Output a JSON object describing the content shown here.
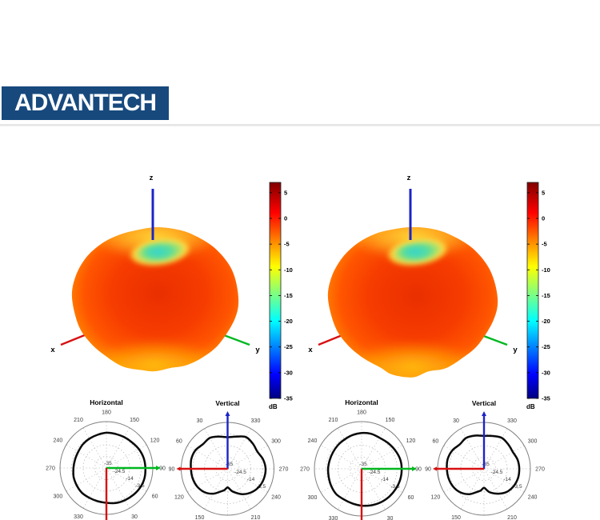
{
  "logo": {
    "text": "ADVANTECH",
    "bg_color": "#17497d"
  },
  "colors": {
    "x_axis": "#d81010",
    "y_axis": "#00b820",
    "z_axis": "#1c24c8",
    "pattern_curve": "#0a0a0a",
    "grid": "#b5b5b5"
  },
  "chart_data": [
    {
      "type": "3d-radiation-pattern",
      "position": "left",
      "axis_labels": {
        "x": "x",
        "y": "y",
        "z": "z"
      },
      "colorbar": {
        "unit": "dB",
        "tick_labels": [
          "5",
          "0",
          "-5",
          "-10",
          "-15",
          "-20",
          "-25",
          "-30",
          "-35"
        ],
        "max": 7,
        "min": -35,
        "colormap": "jet"
      },
      "silhouette": [
        [
          0,
          1.0
        ],
        [
          20,
          0.98
        ],
        [
          40,
          0.93
        ],
        [
          60,
          0.88
        ],
        [
          75,
          0.855
        ],
        [
          90,
          0.845
        ],
        [
          105,
          0.84
        ],
        [
          120,
          0.87
        ],
        [
          135,
          0.915
        ],
        [
          150,
          0.96
        ],
        [
          165,
          0.99
        ],
        [
          180,
          1.0
        ],
        [
          200,
          0.98
        ],
        [
          215,
          0.95
        ],
        [
          230,
          0.92
        ],
        [
          245,
          0.915
        ],
        [
          260,
          0.885
        ],
        [
          270,
          0.885
        ],
        [
          282,
          0.865
        ],
        [
          295,
          0.895
        ],
        [
          310,
          0.92
        ],
        [
          325,
          0.95
        ],
        [
          345,
          0.99
        ]
      ]
    },
    {
      "type": "3d-radiation-pattern",
      "position": "right",
      "axis_labels": {
        "x": "x",
        "y": "y",
        "z": "z"
      },
      "colorbar": {
        "unit": "dB",
        "tick_labels": [
          "5",
          "0",
          "-5",
          "-10",
          "-15",
          "-20",
          "-25",
          "-30",
          "-35"
        ],
        "max": 7,
        "min": -35,
        "colormap": "jet"
      },
      "silhouette": [
        [
          0,
          1.0
        ],
        [
          20,
          0.97
        ],
        [
          40,
          0.92
        ],
        [
          60,
          0.87
        ],
        [
          75,
          0.85
        ],
        [
          90,
          0.84
        ],
        [
          105,
          0.845
        ],
        [
          120,
          0.88
        ],
        [
          135,
          0.92
        ],
        [
          150,
          0.96
        ],
        [
          165,
          0.99
        ],
        [
          180,
          1.0
        ],
        [
          200,
          0.975
        ],
        [
          215,
          0.945
        ],
        [
          230,
          0.915
        ],
        [
          245,
          0.9
        ],
        [
          255,
          0.93
        ],
        [
          270,
          0.93
        ],
        [
          282,
          0.88
        ],
        [
          295,
          0.91
        ],
        [
          310,
          0.915
        ],
        [
          325,
          0.945
        ],
        [
          345,
          0.985
        ]
      ]
    },
    {
      "type": "polar",
      "title": "Horizontal",
      "orientation": "horizontal",
      "angle_tick_labels": [
        180,
        210,
        240,
        270,
        300,
        330,
        30,
        60,
        90,
        120,
        150
      ],
      "radial_tick_labels": [
        "-35",
        "-24.5",
        "-14",
        "-3.5"
      ],
      "radial_range": [
        -35,
        7
      ],
      "series": [
        {
          "name": "gain_db",
          "points": [
            [
              0,
              0.3
            ],
            [
              15,
              -0.1
            ],
            [
              30,
              -1.0
            ],
            [
              45,
              -2.2
            ],
            [
              60,
              -2.7
            ],
            [
              75,
              -3.1
            ],
            [
              90,
              -3.1
            ],
            [
              105,
              -3.9
            ],
            [
              120,
              -4.3
            ],
            [
              135,
              -4.8
            ],
            [
              150,
              -5.6
            ],
            [
              165,
              -5.6
            ],
            [
              180,
              -5.2
            ],
            [
              195,
              -4.3
            ],
            [
              210,
              -3.9
            ],
            [
              225,
              -3.5
            ],
            [
              240,
              -3.9
            ],
            [
              255,
              -3.9
            ],
            [
              270,
              -3.5
            ],
            [
              285,
              -2.2
            ],
            [
              300,
              -1.4
            ],
            [
              315,
              -0.6
            ],
            [
              330,
              0.3
            ],
            [
              345,
              0.7
            ]
          ]
        }
      ]
    },
    {
      "type": "polar",
      "title": "Vertical",
      "orientation": "vertical",
      "angle_tick_labels": [
        30,
        60,
        90,
        120,
        150,
        210,
        240,
        270,
        300,
        330
      ],
      "radial_tick_labels": [
        "-35",
        "-24.5",
        "-14",
        "-3.5"
      ],
      "radial_range": [
        -35,
        7
      ],
      "series": [
        {
          "name": "gain_db",
          "points": [
            [
              0,
              -0.6
            ],
            [
              15,
              -1.8
            ],
            [
              30,
              -3.9
            ],
            [
              45,
              -2.7
            ],
            [
              60,
              -1.8
            ],
            [
              75,
              -4.8
            ],
            [
              90,
              -6.4
            ],
            [
              105,
              -4.8
            ],
            [
              120,
              -2.7
            ],
            [
              135,
              -3.5
            ],
            [
              150,
              -1.4
            ],
            [
              165,
              -1.0
            ],
            [
              180,
              -1.8
            ],
            [
              195,
              -2.2
            ],
            [
              210,
              -3.1
            ],
            [
              225,
              -5.2
            ],
            [
              240,
              -9.0
            ],
            [
              255,
              -14.0
            ],
            [
              262,
              -15.7
            ],
            [
              270,
              -18.2
            ],
            [
              278,
              -15.7
            ],
            [
              285,
              -13.2
            ],
            [
              300,
              -8.5
            ],
            [
              315,
              -4.8
            ],
            [
              330,
              -2.2
            ],
            [
              345,
              -1.0
            ]
          ]
        }
      ]
    },
    {
      "type": "polar",
      "title": "Horizontal",
      "orientation": "horizontal",
      "angle_tick_labels": [
        180,
        210,
        240,
        270,
        300,
        330,
        30,
        60,
        90,
        120,
        150
      ],
      "radial_tick_labels": [
        "-35",
        "-24.5",
        "-14",
        "-3.5"
      ],
      "radial_range": [
        -35,
        7
      ],
      "series": [
        {
          "name": "gain_db",
          "points": [
            [
              0,
              0.7
            ],
            [
              15,
              0.3
            ],
            [
              30,
              -1.0
            ],
            [
              45,
              -2.2
            ],
            [
              60,
              -3.1
            ],
            [
              75,
              -2.7
            ],
            [
              90,
              -3.1
            ],
            [
              105,
              -3.9
            ],
            [
              120,
              -4.8
            ],
            [
              135,
              -5.2
            ],
            [
              150,
              -5.6
            ],
            [
              165,
              -5.6
            ],
            [
              180,
              -5.2
            ],
            [
              195,
              -4.8
            ],
            [
              210,
              -3.9
            ],
            [
              225,
              -3.1
            ],
            [
              240,
              -3.5
            ],
            [
              255,
              -3.1
            ],
            [
              270,
              -2.2
            ],
            [
              285,
              -1.4
            ],
            [
              300,
              -0.6
            ],
            [
              315,
              -0.1
            ],
            [
              330,
              0.3
            ],
            [
              345,
              0.7
            ]
          ]
        }
      ]
    },
    {
      "type": "polar",
      "title": "Vertical",
      "orientation": "vertical",
      "angle_tick_labels": [
        30,
        60,
        90,
        120,
        150,
        210,
        240,
        270,
        300,
        330
      ],
      "radial_tick_labels": [
        "-35",
        "-24.5",
        "-14",
        "-3.5"
      ],
      "radial_range": [
        -35,
        7
      ],
      "series": [
        {
          "name": "gain_db",
          "points": [
            [
              0,
              -3.1
            ],
            [
              15,
              -3.5
            ],
            [
              30,
              -4.8
            ],
            [
              45,
              -3.9
            ],
            [
              60,
              -2.7
            ],
            [
              75,
              -4.3
            ],
            [
              90,
              -5.2
            ],
            [
              105,
              -3.9
            ],
            [
              120,
              -2.7
            ],
            [
              135,
              -3.9
            ],
            [
              150,
              -1.8
            ],
            [
              165,
              -1.0
            ],
            [
              180,
              -1.4
            ],
            [
              195,
              -1.8
            ],
            [
              210,
              -2.7
            ],
            [
              225,
              -4.8
            ],
            [
              240,
              -8.5
            ],
            [
              255,
              -13.6
            ],
            [
              262,
              -15.3
            ],
            [
              270,
              -17.8
            ],
            [
              278,
              -15.3
            ],
            [
              285,
              -12.7
            ],
            [
              300,
              -9.0
            ],
            [
              315,
              -5.6
            ],
            [
              330,
              -3.9
            ],
            [
              345,
              -3.1
            ]
          ]
        }
      ]
    }
  ]
}
